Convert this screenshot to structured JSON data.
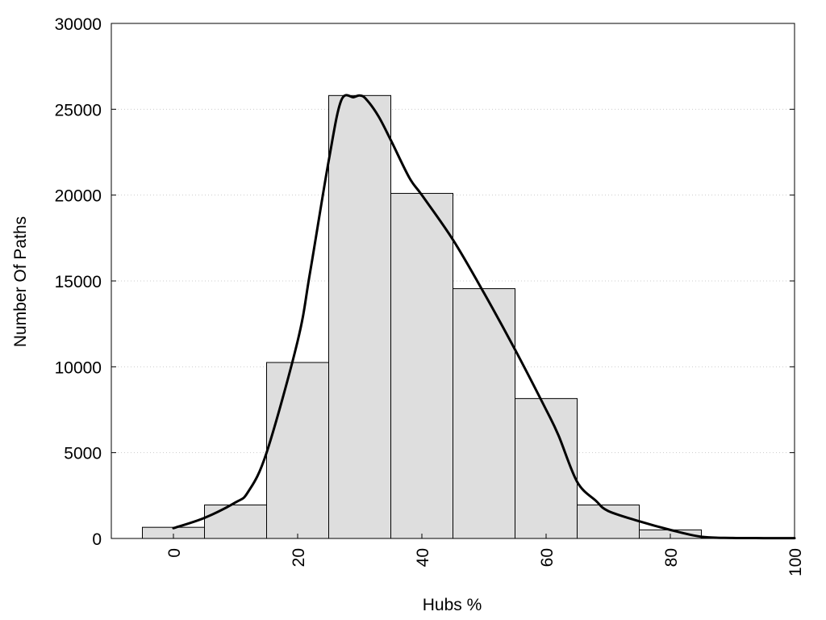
{
  "chart_data": {
    "type": "bar",
    "title": "",
    "xlabel": "Hubs %",
    "ylabel": "Number Of Paths",
    "xlim": [
      -10,
      100
    ],
    "ylim": [
      0,
      30000
    ],
    "xticks": [
      0,
      20,
      40,
      60,
      80,
      100
    ],
    "yticks": [
      0,
      5000,
      10000,
      15000,
      20000,
      25000,
      30000
    ],
    "grid": "horizontal dotted",
    "bin_width": 10,
    "bins": [
      {
        "center": 0,
        "value": 650
      },
      {
        "center": 10,
        "value": 1950
      },
      {
        "center": 20,
        "value": 10250
      },
      {
        "center": 30,
        "value": 25800
      },
      {
        "center": 40,
        "value": 20100
      },
      {
        "center": 50,
        "value": 14550
      },
      {
        "center": 60,
        "value": 8150
      },
      {
        "center": 70,
        "value": 1950
      },
      {
        "center": 80,
        "value": 500
      },
      {
        "center": 90,
        "value": 30
      }
    ],
    "density_curve": {
      "x": [
        0,
        5,
        10,
        12,
        15,
        20,
        22,
        25,
        27,
        29,
        30,
        31,
        33,
        35,
        38,
        40,
        45,
        50,
        55,
        60,
        62,
        65,
        68,
        70,
        75,
        80,
        85,
        90,
        95,
        100
      ],
      "y": [
        600,
        1200,
        2100,
        2700,
        5000,
        11500,
        15500,
        22000,
        25500,
        25700,
        25800,
        25600,
        24600,
        23200,
        21000,
        20000,
        17400,
        14300,
        11000,
        7500,
        6000,
        3300,
        2200,
        1600,
        1000,
        500,
        100,
        30,
        20,
        15
      ]
    },
    "colors": {
      "bar_fill": "#dedede",
      "bar_stroke": "#000000",
      "curve": "#000000",
      "grid": "#cccccc"
    }
  }
}
